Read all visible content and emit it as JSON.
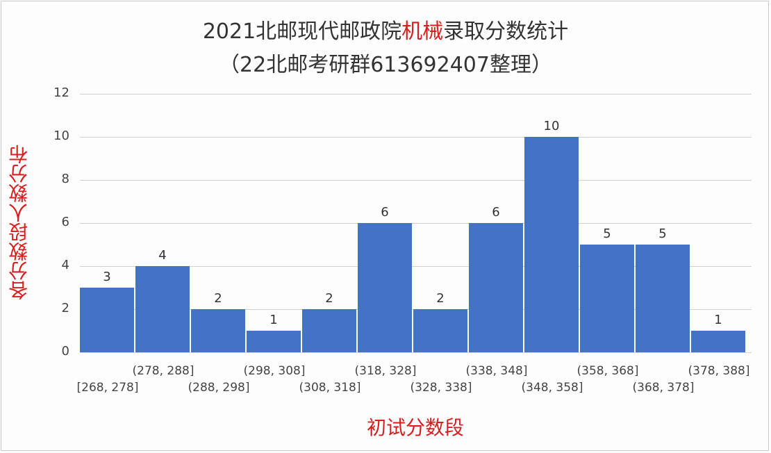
{
  "title": {
    "line1_pre": "2021北邮现代邮政院",
    "line1_red": "机械",
    "line1_post": "录取分数统计",
    "line2": "（22北邮考研群613692407整理）"
  },
  "colors": {
    "bar": "#4472c4",
    "accent_red": "#d81e1e",
    "grid": "#d0d0d0"
  },
  "chart_data": {
    "type": "bar",
    "title": "2021北邮现代邮政院机械录取分数统计（22北邮考研群613692407整理）",
    "xlabel": "初试分数段",
    "ylabel": "各分数段人数分布",
    "categories": [
      "[268, 278]",
      "(278, 288]",
      "(288, 298]",
      "(298, 308]",
      "(308, 318]",
      "(318, 328]",
      "(328, 338]",
      "(338, 348]",
      "(348, 358]",
      "(358, 368]",
      "(368, 378]",
      "(378, 388]"
    ],
    "values": [
      3,
      4,
      2,
      1,
      2,
      6,
      2,
      6,
      10,
      5,
      5,
      1
    ],
    "ylim": [
      0,
      12
    ],
    "yticks": [
      "0",
      "2",
      "4",
      "6",
      "8",
      "10",
      "12"
    ],
    "grid": true,
    "legend": null
  }
}
